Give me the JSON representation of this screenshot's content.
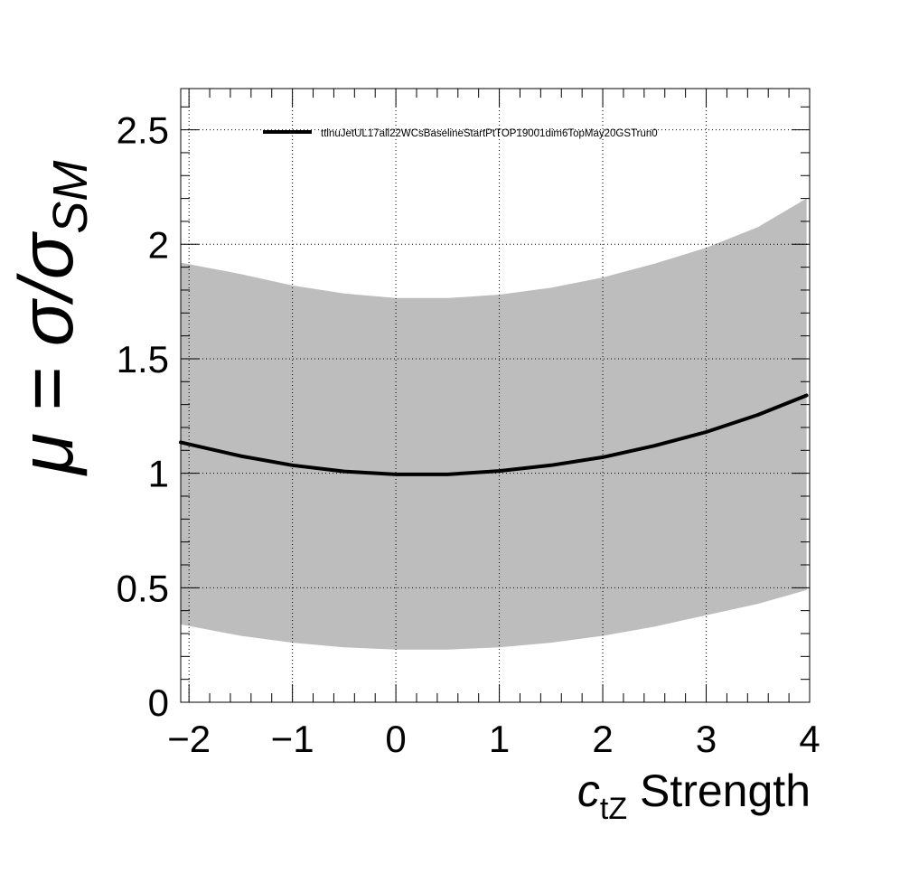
{
  "chart_data": {
    "type": "line",
    "title": "",
    "xlabel": "c_tZ Strength",
    "xlabel_parts": {
      "symbol": "c",
      "subscript": "tZ",
      "rest": " Strength"
    },
    "ylabel": "μ = σ/σ_SM",
    "ylabel_parts": {
      "lhs": "μ = σ/σ",
      "subscript": "SM"
    },
    "xlim": [
      -2.08,
      4.0
    ],
    "ylim": [
      0,
      2.68
    ],
    "x_ticks": [
      -2,
      -1,
      0,
      1,
      2,
      3,
      4
    ],
    "x_tick_labels": [
      "−2",
      "−1",
      "0",
      "1",
      "2",
      "3",
      "4"
    ],
    "y_ticks": [
      0,
      0.5,
      1,
      1.5,
      2,
      2.5
    ],
    "y_tick_labels": [
      "0",
      "0.5",
      "1",
      "1.5",
      "2",
      "2.5"
    ],
    "grid": true,
    "legend_position": "top",
    "series": [
      {
        "name": "ttlnuJetUL17all22WCsBaselineStartPtTOP19001dim6TopMay20GSTrun0",
        "color": "#000000",
        "x": [
          -2.08,
          -1.5,
          -1.0,
          -0.5,
          0.0,
          0.5,
          1.0,
          1.5,
          2.0,
          2.5,
          3.0,
          3.5,
          3.97
        ],
        "y": [
          1.135,
          1.075,
          1.035,
          1.008,
          0.995,
          0.995,
          1.01,
          1.035,
          1.07,
          1.12,
          1.18,
          1.255,
          1.34
        ]
      }
    ],
    "uncertainty_band": {
      "color": "#bdbdbd",
      "x": [
        -2.08,
        -1.5,
        -1.0,
        -0.5,
        0.0,
        0.5,
        1.0,
        1.5,
        2.0,
        2.5,
        3.0,
        3.5,
        3.97
      ],
      "upper": [
        1.92,
        1.87,
        1.82,
        1.785,
        1.765,
        1.765,
        1.78,
        1.81,
        1.855,
        1.915,
        1.985,
        2.075,
        2.2
      ],
      "lower": [
        0.34,
        0.29,
        0.26,
        0.24,
        0.23,
        0.23,
        0.24,
        0.26,
        0.29,
        0.33,
        0.38,
        0.43,
        0.49
      ]
    }
  }
}
